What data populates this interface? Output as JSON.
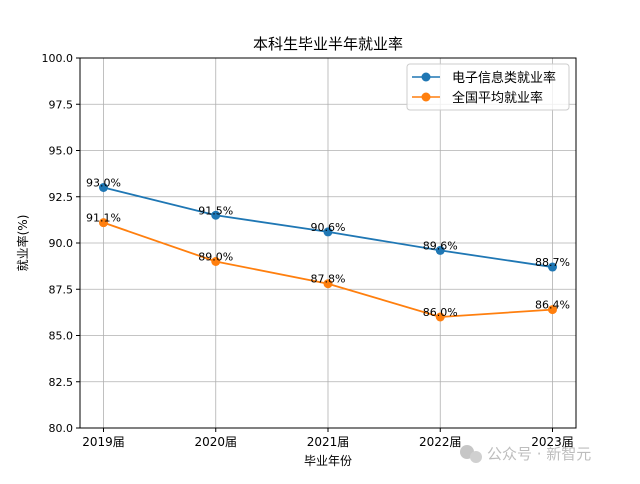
{
  "chart_data": {
    "type": "line",
    "title": "本科生毕业半年就业率",
    "xlabel": "毕业年份",
    "ylabel": "就业率(%)",
    "categories": [
      "2019届",
      "2020届",
      "2021届",
      "2022届",
      "2023届"
    ],
    "ylim": [
      80.0,
      100.0
    ],
    "yticks": [
      "80.0",
      "82.5",
      "85.0",
      "87.5",
      "90.0",
      "92.5",
      "95.0",
      "97.5",
      "100.0"
    ],
    "grid": true,
    "legend_position": "top-right",
    "series": [
      {
        "name": "电子信息类就业率",
        "values": [
          93.0,
          91.5,
          90.6,
          89.6,
          88.7
        ],
        "labels": [
          "93.0%",
          "91.5%",
          "90.6%",
          "89.6%",
          "88.7%"
        ],
        "color": "#1f77b4"
      },
      {
        "name": "全国平均就业率",
        "values": [
          91.1,
          89.0,
          87.8,
          86.0,
          86.4
        ],
        "labels": [
          "91.1%",
          "89.0%",
          "87.8%",
          "86.0%",
          "86.4%"
        ],
        "color": "#ff7f0e"
      }
    ]
  },
  "watermark": "公众号 · 新智元"
}
